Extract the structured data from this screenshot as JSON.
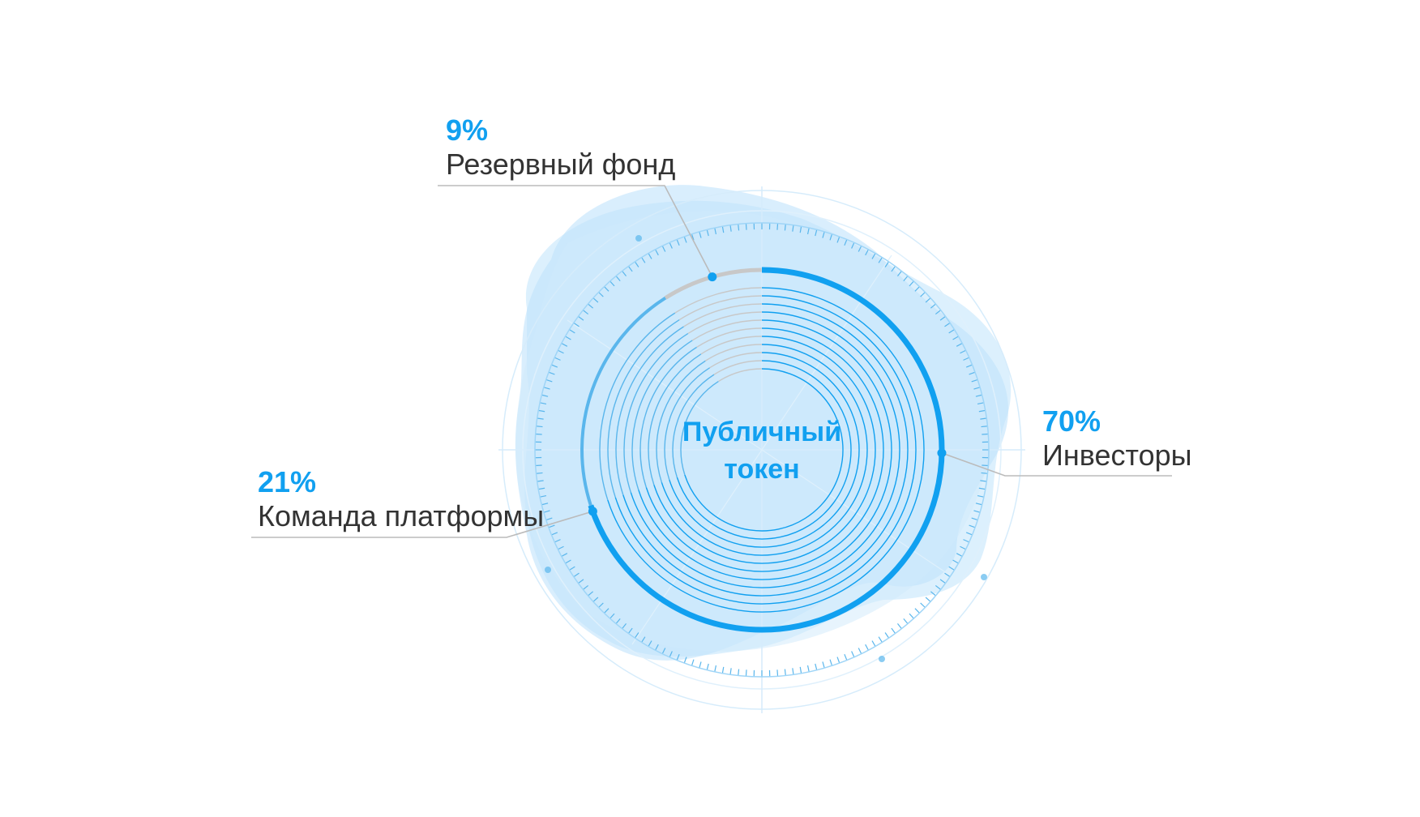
{
  "chart_data": {
    "type": "pie",
    "center_label": [
      "Публичный",
      "токен"
    ],
    "categories": [
      "Инвесторы",
      "Команда платформы",
      "Резервный фонд"
    ],
    "values": [
      70,
      21,
      9
    ],
    "percent_labels": [
      "70%",
      "21%",
      "9%"
    ],
    "colors": {
      "accent": "#11a0f0",
      "secondary": "#5ab6ec",
      "reserve": "#c8c8c8",
      "halo": "#bfe3fb",
      "leader": "#bbbbbb"
    }
  }
}
